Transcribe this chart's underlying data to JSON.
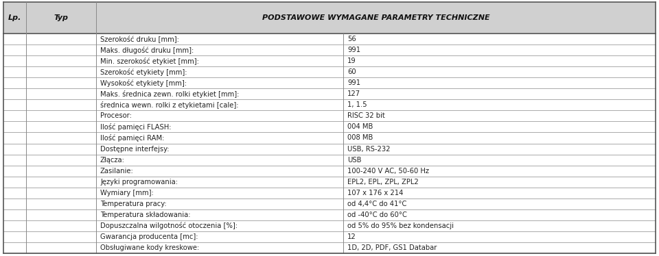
{
  "header_col1": "Lp.",
  "header_col2": "Typ",
  "header_col3": "Podstawowe wymagane parametry techniczne",
  "header_bg": "#d0d0d0",
  "row_bg": "#ffffff",
  "border_color": "#888888",
  "outer_border_color": "#555555",
  "rows": [
    [
      "Szerokość druku [mm]:",
      "56"
    ],
    [
      "Maks. długość druku [mm]:",
      "991"
    ],
    [
      "Min. szerokość etykiet [mm]:",
      "19"
    ],
    [
      "Szerokość etykiety [mm]:",
      "60"
    ],
    [
      "Wysokość etykiety [mm]:",
      "991"
    ],
    [
      "Maks. średnica zewn. rolki etykiet [mm]:",
      "127"
    ],
    [
      "średnica wewn. rolki z etykietami [cale]:",
      "1, 1.5"
    ],
    [
      "Procesor:",
      "RISC 32 bit"
    ],
    [
      "Ilość pamięci FLASH:",
      "004 MB"
    ],
    [
      "Ilość pamięci RAM:",
      "008 MB"
    ],
    [
      "Dostępne interfejsy:",
      "USB, RS-232"
    ],
    [
      "Złącza:",
      "USB"
    ],
    [
      "Zasilanie:",
      "100-240 V AC, 50-60 Hz"
    ],
    [
      "Języki programowania:",
      "EPL2, EPL, ZPL, ZPL2"
    ],
    [
      "Wymiary [mm]:",
      "107 x 176 x 214"
    ],
    [
      "Temperatura pracy:",
      "od 4,4°C do 41°C"
    ],
    [
      "Temperatura składowania:",
      "od -40°C do 60°C"
    ],
    [
      "Dopuszczalna wilgotność otoczenia [%]:",
      "od 5% do 95% bez kondensacji"
    ],
    [
      "Gwarancja producenta [mc]:",
      "12"
    ],
    [
      "Obsługiwane kody kreskowe:",
      "1D, 2D, PDF, GS1 Databar"
    ]
  ],
  "font_size_header": 8.0,
  "font_size_rows": 7.2,
  "text_color": "#222222",
  "header_text_color": "#111111",
  "fig_width": 9.6,
  "fig_height": 3.74,
  "dpi": 100
}
